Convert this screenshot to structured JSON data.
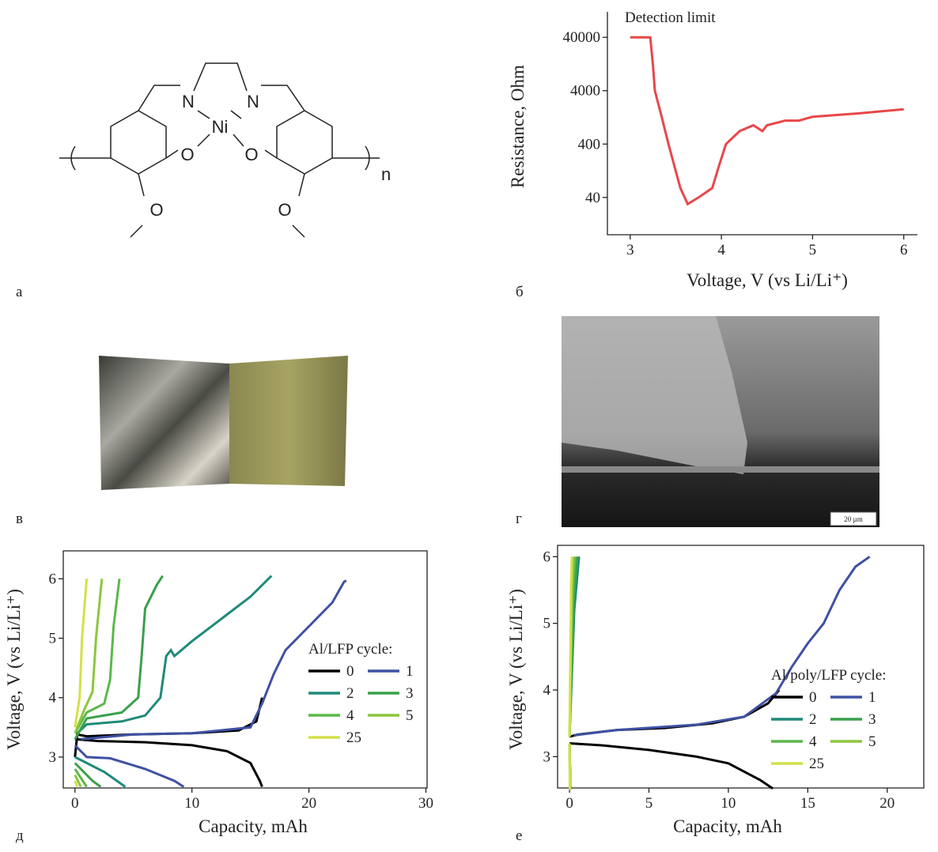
{
  "panel_labels": [
    "а",
    "б",
    "в",
    "г",
    "д",
    "е"
  ],
  "structure": {
    "atoms": [
      "N",
      "N",
      "Ni",
      "O",
      "O",
      "O",
      "O"
    ],
    "subscript": "n"
  },
  "sem": {
    "scale_bar": "20 µm"
  },
  "chart_data": [
    {
      "type": "line",
      "ylabel": "Resistance, Ohm",
      "xlabel": "Voltage, V (vs Li/Li⁺)",
      "annotation": "Detection limit",
      "log_y": true,
      "xlim": [
        2.75,
        6.15
      ],
      "xticks": [
        3,
        4,
        5,
        6
      ],
      "ylim": [
        8,
        120000
      ],
      "yticks": [
        40,
        400,
        4000,
        40000
      ],
      "series": [
        {
          "color": "#e8474a",
          "x": [
            3.0,
            3.22,
            3.25,
            3.27,
            3.35,
            3.42,
            3.55,
            3.63,
            3.75,
            3.9,
            3.97,
            4.05,
            4.2,
            4.35,
            4.45,
            4.5,
            4.7,
            4.85,
            5.0,
            5.5,
            6.0
          ],
          "values": [
            40000,
            40000,
            12000,
            4000,
            1200,
            400,
            60,
            30,
            40,
            60,
            150,
            400,
            700,
            900,
            700,
            900,
            1100,
            1100,
            1300,
            1500,
            1800
          ]
        }
      ]
    },
    {
      "type": "line",
      "ylabel": "Voltage, V (vs Li/Li⁺)",
      "xlabel": "Capacity, mAh",
      "legend_title": "Al/LFP cycle:",
      "xlim": [
        -1,
        30.1
      ],
      "xticks": [
        0,
        10,
        20,
        30
      ],
      "ylim": [
        2.48,
        6.47
      ],
      "yticks": [
        3,
        4,
        5,
        6
      ],
      "series": [
        {
          "name": "0",
          "color": "#000000",
          "x": [
            0,
            0.2,
            1,
            5,
            10,
            14,
            15.5,
            16,
            null,
            0,
            2,
            6,
            10,
            13,
            15,
            15.8,
            16
          ],
          "values": [
            3.0,
            3.38,
            3.35,
            3.38,
            3.4,
            3.45,
            3.6,
            4.0,
            null,
            3.3,
            3.27,
            3.25,
            3.2,
            3.1,
            2.9,
            2.6,
            2.5
          ]
        },
        {
          "name": "1",
          "color": "#3f51a3",
          "x": [
            0.5,
            5,
            10,
            15,
            16,
            17,
            18,
            20,
            22,
            23,
            23.2,
            null,
            0,
            1,
            3,
            6,
            8.5,
            9.3
          ],
          "values": [
            3.3,
            3.38,
            3.4,
            3.5,
            3.9,
            4.4,
            4.8,
            5.2,
            5.6,
            5.95,
            5.97,
            null,
            3.2,
            3.0,
            2.98,
            2.8,
            2.6,
            2.5
          ]
        },
        {
          "name": "2",
          "color": "#1f8a7a",
          "x": [
            0.2,
            1,
            4,
            6,
            7.3,
            7.8,
            8.2,
            8.5,
            10,
            13,
            15,
            16.8,
            null,
            0,
            1,
            2.5,
            4.3
          ],
          "values": [
            3.4,
            3.55,
            3.6,
            3.7,
            4.0,
            4.7,
            4.8,
            4.7,
            4.95,
            5.4,
            5.7,
            6.05,
            null,
            3.0,
            2.9,
            2.75,
            2.5
          ]
        },
        {
          "name": "3",
          "color": "#3aa04a",
          "x": [
            0,
            1,
            4,
            5.4,
            5.7,
            6,
            7,
            7.5,
            null,
            0,
            1.5,
            2.2
          ],
          "values": [
            3.3,
            3.65,
            3.75,
            4.0,
            4.7,
            5.5,
            5.9,
            6.05,
            null,
            2.9,
            2.6,
            2.5
          ]
        },
        {
          "name": "4",
          "color": "#5bb84a",
          "x": [
            0,
            1,
            2.5,
            3,
            3.3,
            3.8,
            null,
            0,
            1
          ],
          "values": [
            3.4,
            3.75,
            3.9,
            4.3,
            5.2,
            6.0,
            null,
            2.8,
            2.5
          ]
        },
        {
          "name": "5",
          "color": "#8cc63f",
          "x": [
            0,
            0.8,
            1.5,
            1.8,
            2.3,
            null,
            0,
            0.5
          ],
          "values": [
            3.4,
            3.8,
            4.1,
            5.0,
            6.0,
            null,
            2.7,
            2.5
          ]
        },
        {
          "name": "25",
          "color": "#d4e04a",
          "x": [
            0,
            0.4,
            0.6,
            1,
            null,
            0,
            0.2
          ],
          "values": [
            3.5,
            4.0,
            5.0,
            6.0,
            null,
            2.6,
            2.5
          ]
        }
      ]
    },
    {
      "type": "line",
      "ylabel": "Voltage, V (vs Li/Li⁺)",
      "xlabel": "Capacity, mAh",
      "legend_title": "Al/poly/LFP cycle:",
      "xlim": [
        -0.75,
        22.3
      ],
      "xticks": [
        0,
        5,
        10,
        15,
        20
      ],
      "ylim": [
        2.53,
        6.17
      ],
      "yticks": [
        3,
        4,
        5,
        6
      ],
      "series": [
        {
          "name": "0",
          "color": "#000000",
          "x": [
            0,
            0.5,
            3,
            6,
            9,
            11,
            12.5,
            13.2,
            null,
            0,
            2,
            5,
            8,
            10,
            12,
            12.8
          ],
          "values": [
            3.3,
            3.33,
            3.4,
            3.43,
            3.5,
            3.6,
            3.8,
            4.0,
            null,
            3.2,
            3.17,
            3.1,
            3.0,
            2.9,
            2.65,
            2.52
          ]
        },
        {
          "name": "1",
          "color": "#3f51a3",
          "x": [
            0.3,
            3,
            8,
            11,
            13,
            14,
            15,
            16,
            17,
            18,
            18.9,
            null,
            0,
            0.05
          ],
          "values": [
            3.32,
            3.4,
            3.48,
            3.6,
            3.95,
            4.35,
            4.7,
            5.0,
            5.5,
            5.85,
            6.0,
            null,
            3.2,
            2.52
          ]
        },
        {
          "name": "2",
          "color": "#1f8a7a",
          "x": [
            0,
            0.3,
            0.6,
            null,
            0,
            0.05
          ],
          "values": [
            3.3,
            5.2,
            6.0,
            null,
            3.2,
            2.5
          ]
        },
        {
          "name": "3",
          "color": "#3aa04a",
          "x": [
            0,
            0.25,
            0.5,
            null,
            0,
            0.05
          ],
          "values": [
            3.3,
            5.3,
            6.0,
            null,
            3.2,
            2.5
          ]
        },
        {
          "name": "4",
          "color": "#5bb84a",
          "x": [
            0,
            0.2,
            0.35,
            null,
            0,
            0.04
          ],
          "values": [
            3.3,
            5.4,
            6.0,
            null,
            3.2,
            2.5
          ]
        },
        {
          "name": "5",
          "color": "#8cc63f",
          "x": [
            0,
            0.15,
            0.25,
            null,
            0,
            0.03
          ],
          "values": [
            3.3,
            5.5,
            6.0,
            null,
            3.2,
            2.5
          ]
        },
        {
          "name": "25",
          "color": "#d4e04a",
          "x": [
            0,
            0.1,
            0.15,
            null,
            0,
            0.02
          ],
          "values": [
            3.3,
            5.6,
            6.0,
            null,
            3.2,
            2.5
          ]
        }
      ]
    }
  ]
}
